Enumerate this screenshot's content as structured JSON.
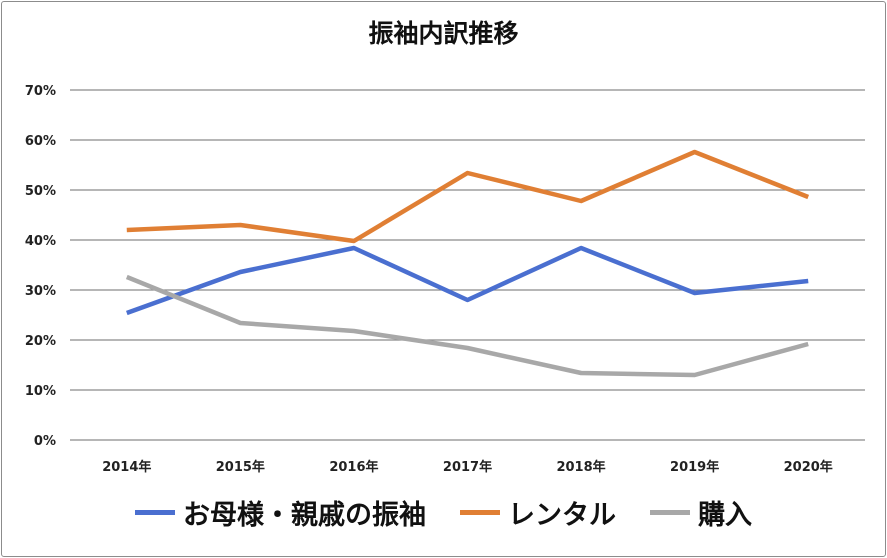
{
  "chart_data": {
    "type": "line",
    "title": "振袖内訳推移",
    "categories": [
      "2014年",
      "2015年",
      "2016年",
      "2017年",
      "2018年",
      "2019年",
      "2020年"
    ],
    "ylim": [
      0,
      70
    ],
    "yticks": [
      "0%",
      "10%",
      "20%",
      "30%",
      "40%",
      "50%",
      "60%",
      "70%"
    ],
    "grid": true,
    "legend_position": "bottom",
    "series": [
      {
        "name": "お母様・親戚の振袖",
        "color": "#4a6fd0",
        "values": [
          25.4,
          33.6,
          38.4,
          28.0,
          38.4,
          29.4,
          31.8
        ]
      },
      {
        "name": "レンタル",
        "color": "#e07f34",
        "values": [
          42.0,
          43.0,
          39.8,
          53.4,
          47.8,
          57.6,
          48.6
        ]
      },
      {
        "name": "購入",
        "color": "#a8a8a8",
        "values": [
          32.6,
          23.4,
          21.8,
          18.4,
          13.4,
          13.0,
          19.2
        ]
      }
    ]
  }
}
